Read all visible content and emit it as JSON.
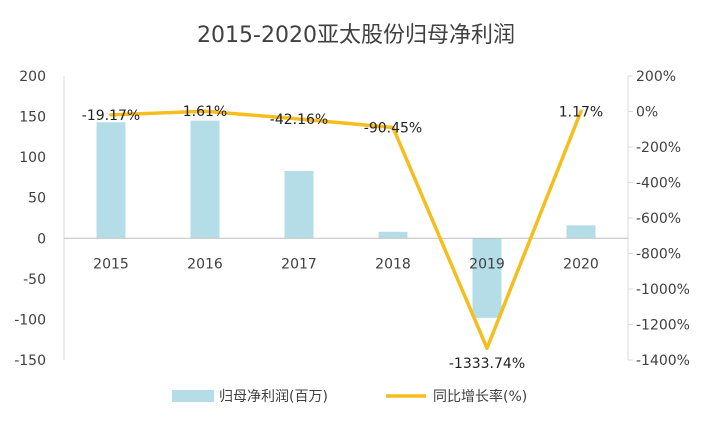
{
  "chart_data": {
    "type": "bar+line",
    "title": "2015-2020亚太股份归母净利润",
    "categories": [
      "2015",
      "2016",
      "2017",
      "2018",
      "2019",
      "2020"
    ],
    "series": [
      {
        "name": "归母净利润(百万)",
        "type": "bar",
        "axis": "left",
        "color": "#b4dde8",
        "values": [
          143,
          145,
          83,
          8,
          -98,
          16
        ]
      },
      {
        "name": "同比增长率(%)",
        "type": "line",
        "axis": "right",
        "color": "#f5be1e",
        "values": [
          -19.17,
          1.61,
          -42.16,
          -90.45,
          -1333.74,
          1.17
        ],
        "labels": [
          "-19.17%",
          "1.61%",
          "-42.16%",
          "-90.45%",
          "-1333.74%",
          "1.17%"
        ]
      }
    ],
    "y_left": {
      "min": -150,
      "max": 200,
      "ticks": [
        200,
        150,
        100,
        50,
        0,
        -50,
        -100,
        -150
      ],
      "tick_labels": [
        "200",
        "150",
        "100",
        "50",
        "0",
        "-50",
        "-100",
        "-150"
      ]
    },
    "y_right": {
      "min": -1400,
      "max": 200,
      "ticks": [
        200,
        0,
        -200,
        -400,
        -600,
        -800,
        -1000,
        -1200,
        -1400
      ],
      "tick_labels": [
        "200%",
        "0%",
        "-200%",
        "-400%",
        "-600%",
        "-800%",
        "-1000%",
        "-1200%",
        "-1400%"
      ]
    },
    "legend": {
      "position": "bottom",
      "items": [
        "归母净利润(百万)",
        "同比增长率(%)"
      ]
    }
  }
}
